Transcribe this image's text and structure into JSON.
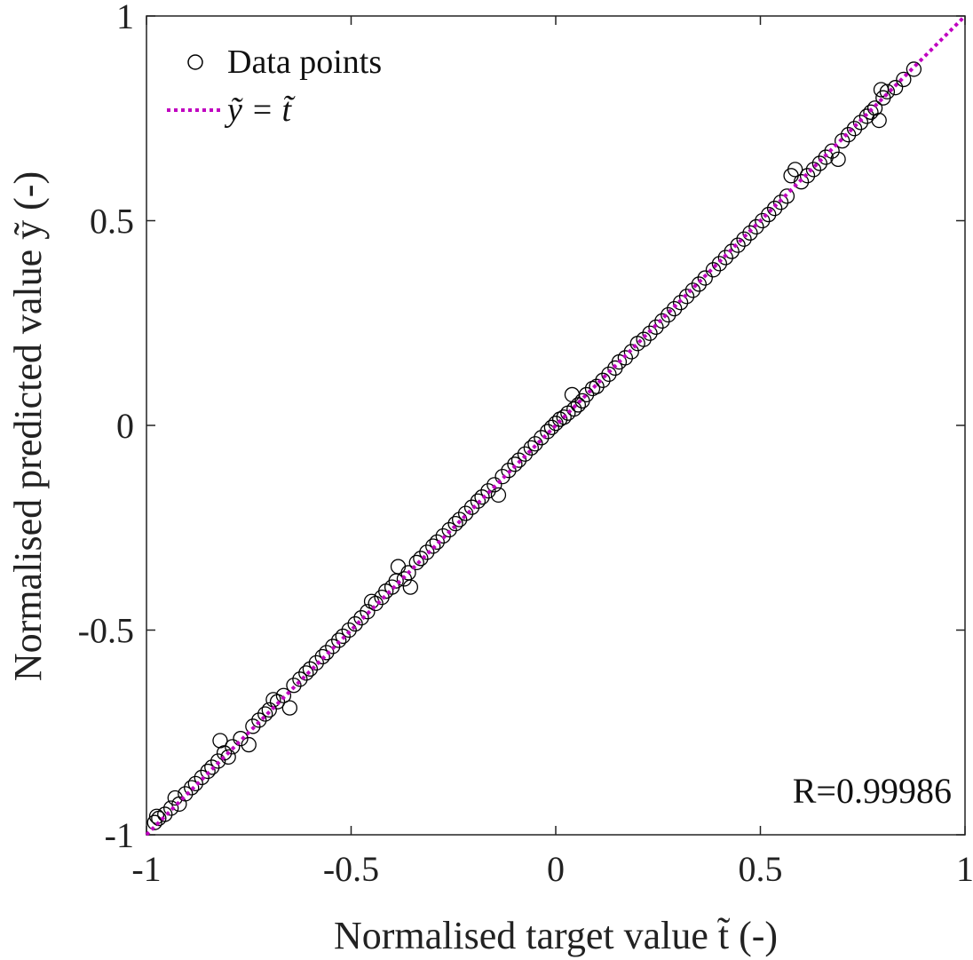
{
  "chart_data": {
    "type": "scatter",
    "xlabel": "Normalised target value t̃ (-)",
    "ylabel": "Normalised predicted value ỹ (-)",
    "xlim": [
      -1,
      1
    ],
    "ylim": [
      -1,
      1
    ],
    "x_ticks": [
      -1,
      -0.5,
      0,
      0.5,
      1
    ],
    "y_ticks": [
      -1,
      -0.5,
      0,
      0.5,
      1
    ],
    "x_tick_labels": [
      "-1",
      "-0.5",
      "0",
      "0.5",
      "1"
    ],
    "y_tick_labels": [
      "-1",
      "-0.5",
      "0",
      "0.5",
      "1"
    ],
    "grid": false,
    "legend_position": "top-left",
    "annotation": "R=0.99986",
    "series": [
      {
        "name": "Data points",
        "kind": "scatter",
        "marker": "open-circle",
        "color": "#000000",
        "points": [
          [
            -0.98,
            -0.97
          ],
          [
            -0.975,
            -0.955
          ],
          [
            -0.97,
            -0.96
          ],
          [
            -0.955,
            -0.95
          ],
          [
            -0.94,
            -0.935
          ],
          [
            -0.93,
            -0.91
          ],
          [
            -0.92,
            -0.925
          ],
          [
            -0.905,
            -0.9
          ],
          [
            -0.89,
            -0.885
          ],
          [
            -0.88,
            -0.875
          ],
          [
            -0.865,
            -0.86
          ],
          [
            -0.85,
            -0.845
          ],
          [
            -0.84,
            -0.835
          ],
          [
            -0.825,
            -0.82
          ],
          [
            -0.81,
            -0.8
          ],
          [
            -0.8,
            -0.81
          ],
          [
            -0.79,
            -0.785
          ],
          [
            -0.82,
            -0.77
          ],
          [
            -0.77,
            -0.765
          ],
          [
            -0.75,
            -0.78
          ],
          [
            -0.74,
            -0.735
          ],
          [
            -0.725,
            -0.72
          ],
          [
            -0.71,
            -0.705
          ],
          [
            -0.7,
            -0.695
          ],
          [
            -0.69,
            -0.67
          ],
          [
            -0.68,
            -0.675
          ],
          [
            -0.665,
            -0.66
          ],
          [
            -0.65,
            -0.69
          ],
          [
            -0.64,
            -0.635
          ],
          [
            -0.625,
            -0.62
          ],
          [
            -0.61,
            -0.605
          ],
          [
            -0.6,
            -0.595
          ],
          [
            -0.585,
            -0.58
          ],
          [
            -0.57,
            -0.565
          ],
          [
            -0.56,
            -0.555
          ],
          [
            -0.545,
            -0.54
          ],
          [
            -0.53,
            -0.525
          ],
          [
            -0.52,
            -0.515
          ],
          [
            -0.505,
            -0.5
          ],
          [
            -0.49,
            -0.485
          ],
          [
            -0.475,
            -0.47
          ],
          [
            -0.46,
            -0.455
          ],
          [
            -0.45,
            -0.43
          ],
          [
            -0.44,
            -0.435
          ],
          [
            -0.425,
            -0.42
          ],
          [
            -0.415,
            -0.405
          ],
          [
            -0.4,
            -0.395
          ],
          [
            -0.39,
            -0.38
          ],
          [
            -0.385,
            -0.345
          ],
          [
            -0.37,
            -0.375
          ],
          [
            -0.36,
            -0.36
          ],
          [
            -0.355,
            -0.395
          ],
          [
            -0.34,
            -0.335
          ],
          [
            -0.33,
            -0.325
          ],
          [
            -0.315,
            -0.31
          ],
          [
            -0.3,
            -0.295
          ],
          [
            -0.29,
            -0.285
          ],
          [
            -0.275,
            -0.27
          ],
          [
            -0.26,
            -0.255
          ],
          [
            -0.245,
            -0.24
          ],
          [
            -0.235,
            -0.23
          ],
          [
            -0.22,
            -0.215
          ],
          [
            -0.205,
            -0.2
          ],
          [
            -0.19,
            -0.185
          ],
          [
            -0.18,
            -0.175
          ],
          [
            -0.165,
            -0.16
          ],
          [
            -0.15,
            -0.145
          ],
          [
            -0.14,
            -0.17
          ],
          [
            -0.13,
            -0.125
          ],
          [
            -0.115,
            -0.11
          ],
          [
            -0.1,
            -0.095
          ],
          [
            -0.09,
            -0.085
          ],
          [
            -0.075,
            -0.07
          ],
          [
            -0.06,
            -0.055
          ],
          [
            -0.05,
            -0.045
          ],
          [
            -0.035,
            -0.03
          ],
          [
            -0.02,
            -0.015
          ],
          [
            -0.01,
            -0.005
          ],
          [
            0.0,
            0.005
          ],
          [
            0.01,
            0.015
          ],
          [
            0.02,
            0.02
          ],
          [
            0.03,
            0.03
          ],
          [
            0.04,
            0.075
          ],
          [
            0.045,
            0.04
          ],
          [
            0.055,
            0.05
          ],
          [
            0.065,
            0.06
          ],
          [
            0.075,
            0.075
          ],
          [
            0.09,
            0.09
          ],
          [
            0.1,
            0.095
          ],
          [
            0.115,
            0.11
          ],
          [
            0.13,
            0.125
          ],
          [
            0.145,
            0.14
          ],
          [
            0.155,
            0.155
          ],
          [
            0.17,
            0.165
          ],
          [
            0.185,
            0.18
          ],
          [
            0.2,
            0.2
          ],
          [
            0.215,
            0.21
          ],
          [
            0.23,
            0.225
          ],
          [
            0.245,
            0.24
          ],
          [
            0.26,
            0.255
          ],
          [
            0.275,
            0.27
          ],
          [
            0.29,
            0.285
          ],
          [
            0.305,
            0.3
          ],
          [
            0.32,
            0.315
          ],
          [
            0.335,
            0.33
          ],
          [
            0.35,
            0.345
          ],
          [
            0.365,
            0.36
          ],
          [
            0.385,
            0.38
          ],
          [
            0.4,
            0.395
          ],
          [
            0.415,
            0.41
          ],
          [
            0.43,
            0.425
          ],
          [
            0.445,
            0.44
          ],
          [
            0.46,
            0.455
          ],
          [
            0.475,
            0.47
          ],
          [
            0.49,
            0.485
          ],
          [
            0.505,
            0.5
          ],
          [
            0.52,
            0.515
          ],
          [
            0.535,
            0.53
          ],
          [
            0.55,
            0.545
          ],
          [
            0.565,
            0.56
          ],
          [
            0.575,
            0.61
          ],
          [
            0.585,
            0.625
          ],
          [
            0.6,
            0.595
          ],
          [
            0.615,
            0.61
          ],
          [
            0.63,
            0.625
          ],
          [
            0.645,
            0.64
          ],
          [
            0.66,
            0.655
          ],
          [
            0.675,
            0.67
          ],
          [
            0.69,
            0.65
          ],
          [
            0.7,
            0.695
          ],
          [
            0.715,
            0.71
          ],
          [
            0.73,
            0.725
          ],
          [
            0.745,
            0.74
          ],
          [
            0.76,
            0.755
          ],
          [
            0.77,
            0.765
          ],
          [
            0.78,
            0.775
          ],
          [
            0.79,
            0.745
          ],
          [
            0.8,
            0.8
          ],
          [
            0.795,
            0.82
          ],
          [
            0.81,
            0.815
          ],
          [
            0.83,
            0.825
          ],
          [
            0.85,
            0.845
          ],
          [
            0.875,
            0.87
          ]
        ]
      },
      {
        "name": "ỹ = t̃",
        "kind": "line",
        "style": "dotted",
        "color": "#c000c0",
        "x": [
          -1,
          1
        ],
        "y": [
          -1,
          1
        ]
      }
    ]
  }
}
